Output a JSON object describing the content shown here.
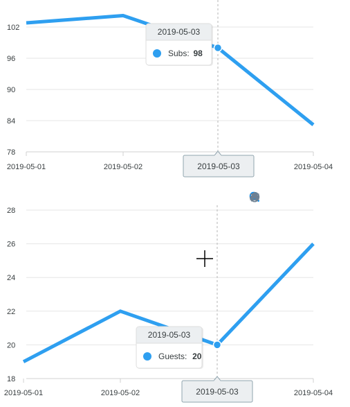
{
  "colors": {
    "series": "#2e9ff0",
    "grid": "#e6e6e6",
    "axis": "#d0d0d0",
    "text": "#373d3f",
    "tooltip_header": "#eceff1",
    "zoom_active": "#008ffb",
    "icon": "#6e8192"
  },
  "toolbar": {
    "icons": [
      "zoom-in-icon",
      "zoom-out-icon",
      "zoom-selection-icon",
      "pan-hand-icon",
      "home-reset-icon",
      "menu-icon"
    ]
  },
  "chart_data": [
    {
      "type": "line",
      "x": [
        "2019-05-01",
        "2019-05-02",
        "2019-05-03",
        "2019-05-04"
      ],
      "series": [
        {
          "name": "Subs",
          "values": [
            102.8,
            104.2,
            98.0,
            83.2
          ]
        }
      ],
      "ylim": [
        78,
        104
      ],
      "yticks": [
        78,
        84,
        90,
        96,
        102
      ],
      "xticks": [
        "2019-05-01",
        "2019-05-02",
        "2019-05-03",
        "2019-05-04"
      ],
      "tooltip": {
        "title": "2019-05-03",
        "series": "Subs",
        "label": "Subs:",
        "value": "98"
      },
      "crosshair_label": "2019-05-03"
    },
    {
      "type": "line",
      "x": [
        "2019-05-01",
        "2019-05-02",
        "2019-05-03",
        "2019-05-04"
      ],
      "series": [
        {
          "name": "Guests",
          "values": [
            19.0,
            22.0,
            20.0,
            26.0
          ]
        }
      ],
      "ylim": [
        18,
        28
      ],
      "yticks": [
        18,
        20,
        22,
        24,
        26,
        28
      ],
      "xticks": [
        "2019-05-01",
        "2019-05-02",
        "2019-05-03",
        "2019-05-04"
      ],
      "tooltip": {
        "title": "2019-05-03",
        "series": "Guests",
        "label": "Guests:",
        "value": "20"
      },
      "crosshair_label": "2019-05-03"
    }
  ]
}
